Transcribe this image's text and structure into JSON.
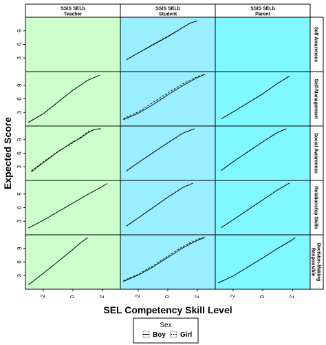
{
  "chart_data": {
    "type": "line",
    "columns": [
      {
        "line1": "SSIS SELb",
        "line2": "Teacher",
        "bg": "#ccffcc"
      },
      {
        "line1": "SSIS SELb",
        "line2": "Student",
        "bg": "#99eeff"
      },
      {
        "line1": "SSIS SELb",
        "line2": "Parent",
        "bg": "#80f8ff"
      }
    ],
    "rows": [
      {
        "label": "Self Awareness",
        "lines": [
          "Self Awareness"
        ]
      },
      {
        "label": "Self-Management",
        "lines": [
          "Self-Management"
        ]
      },
      {
        "label": "Social Awareness",
        "lines": [
          "Social Awareness"
        ]
      },
      {
        "label": "Relationship Skills",
        "lines": [
          "Relationship Skills"
        ]
      },
      {
        "label": "Responsible Decision-Making",
        "lines": [
          "Responsible",
          "Decision-Making"
        ]
      }
    ],
    "xlabel": "SEL Competency Skill Level",
    "ylabel": "Expected Score",
    "xlim": [
      -3.2,
      3.2
    ],
    "ylim": [
      0,
      12
    ],
    "x_ticks": [
      -2,
      0,
      2
    ],
    "y_ticks": [
      3,
      6,
      9
    ],
    "legend": {
      "title": "Sex",
      "placement": "bottom",
      "items": [
        {
          "name": "Boy",
          "style": "solid"
        },
        {
          "name": "Girl",
          "style": "dashed"
        }
      ]
    },
    "series": [
      {
        "row": 0,
        "col": 0,
        "name": "Boy",
        "x": [],
        "y": []
      },
      {
        "row": 0,
        "col": 0,
        "name": "Girl",
        "x": [],
        "y": []
      },
      {
        "row": 0,
        "col": 1,
        "name": "Boy",
        "x": [
          -2.8,
          -2.0,
          -1.0,
          0.0,
          1.0,
          1.5,
          2.0
        ],
        "y": [
          2.6,
          4.1,
          5.9,
          7.7,
          9.7,
          10.7,
          11.2
        ]
      },
      {
        "row": 0,
        "col": 1,
        "name": "Girl",
        "x": [
          -2.8,
          -2.0,
          -1.0,
          0.0,
          1.0,
          1.5,
          2.0
        ],
        "y": [
          2.6,
          4.1,
          6.0,
          7.8,
          9.7,
          10.7,
          11.2
        ]
      },
      {
        "row": 0,
        "col": 2,
        "name": "Boy",
        "x": [],
        "y": []
      },
      {
        "row": 0,
        "col": 2,
        "name": "Girl",
        "x": [],
        "y": []
      },
      {
        "row": 1,
        "col": 0,
        "name": "Boy",
        "x": [
          -3.0,
          -2.0,
          -1.0,
          0.0,
          1.0,
          1.8
        ],
        "y": [
          0.8,
          2.7,
          5.3,
          7.9,
          10.1,
          11.2
        ]
      },
      {
        "row": 1,
        "col": 0,
        "name": "Girl",
        "x": [
          -3.0,
          -2.0,
          -1.0,
          0.0,
          1.0,
          1.8
        ],
        "y": [
          0.8,
          2.7,
          5.3,
          7.9,
          10.1,
          11.2
        ]
      },
      {
        "row": 1,
        "col": 1,
        "name": "Boy",
        "x": [
          -3.0,
          -2.0,
          -1.0,
          0.0,
          1.0,
          2.0,
          2.5
        ],
        "y": [
          1.4,
          2.8,
          4.7,
          6.9,
          8.9,
          10.7,
          11.4
        ]
      },
      {
        "row": 1,
        "col": 1,
        "name": "Girl",
        "x": [
          -3.0,
          -2.0,
          -1.0,
          0.0,
          1.0,
          2.0,
          2.5
        ],
        "y": [
          1.6,
          3.1,
          5.2,
          7.3,
          9.3,
          10.9,
          11.4
        ]
      },
      {
        "row": 1,
        "col": 2,
        "name": "Boy",
        "x": [
          -2.8,
          -2.0,
          -1.0,
          0.0,
          1.0,
          1.8
        ],
        "y": [
          1.6,
          3.1,
          5.1,
          7.1,
          9.4,
          11.0
        ]
      },
      {
        "row": 1,
        "col": 2,
        "name": "Girl",
        "x": [
          -2.8,
          -2.0,
          -1.0,
          0.0,
          1.0,
          1.8
        ],
        "y": [
          1.6,
          3.1,
          5.1,
          7.1,
          9.4,
          11.0
        ]
      },
      {
        "row": 2,
        "col": 0,
        "name": "Boy",
        "x": [
          -2.8,
          -2.0,
          -1.0,
          0.0,
          0.5,
          1.0,
          1.5,
          1.9
        ],
        "y": [
          1.9,
          3.9,
          6.3,
          8.5,
          9.3,
          10.5,
          11.3,
          11.4
        ]
      },
      {
        "row": 2,
        "col": 0,
        "name": "Girl",
        "x": [
          -2.8,
          -2.0,
          -1.0,
          0.0,
          0.5,
          1.0,
          1.5,
          1.9
        ],
        "y": [
          2.1,
          4.1,
          6.4,
          8.3,
          9.5,
          10.7,
          11.3,
          11.4
        ]
      },
      {
        "row": 2,
        "col": 1,
        "name": "Boy",
        "x": [
          -2.8,
          -2.0,
          -1.0,
          0.0,
          1.0,
          1.8
        ],
        "y": [
          2.1,
          3.9,
          6.1,
          8.3,
          10.4,
          11.4
        ]
      },
      {
        "row": 2,
        "col": 1,
        "name": "Girl",
        "x": [
          -2.8,
          -2.0,
          -1.0,
          0.0,
          1.0,
          1.8
        ],
        "y": [
          2.1,
          3.9,
          6.1,
          8.3,
          10.4,
          11.4
        ]
      },
      {
        "row": 2,
        "col": 2,
        "name": "Boy",
        "x": [
          -2.8,
          -2.0,
          -1.0,
          0.0,
          1.0,
          1.6
        ],
        "y": [
          2.2,
          4.1,
          6.3,
          8.5,
          10.6,
          11.4
        ]
      },
      {
        "row": 2,
        "col": 2,
        "name": "Girl",
        "x": [
          -2.8,
          -2.0,
          -1.0,
          0.0,
          1.0,
          1.6
        ],
        "y": [
          2.2,
          4.1,
          6.3,
          8.5,
          10.6,
          11.4
        ]
      },
      {
        "row": 3,
        "col": 0,
        "name": "Boy",
        "x": [
          -3.0,
          -2.0,
          -1.0,
          0.0,
          1.0,
          2.0,
          2.3
        ],
        "y": [
          1.5,
          3.2,
          5.1,
          7.0,
          8.9,
          10.7,
          11.3
        ]
      },
      {
        "row": 3,
        "col": 0,
        "name": "Girl",
        "x": [
          -3.0,
          -2.0,
          -1.0,
          0.0,
          1.0,
          2.0,
          2.3
        ],
        "y": [
          1.5,
          3.2,
          5.1,
          7.0,
          8.9,
          10.7,
          11.3
        ]
      },
      {
        "row": 3,
        "col": 1,
        "name": "Boy",
        "x": [
          -2.8,
          -2.0,
          -1.0,
          0.0,
          1.0,
          1.7
        ],
        "y": [
          1.9,
          3.7,
          6.0,
          8.3,
          10.4,
          11.4
        ]
      },
      {
        "row": 3,
        "col": 1,
        "name": "Girl",
        "x": [
          -2.8,
          -2.0,
          -1.0,
          0.0,
          1.0,
          1.7
        ],
        "y": [
          1.9,
          3.7,
          6.0,
          8.3,
          10.4,
          11.4
        ]
      },
      {
        "row": 3,
        "col": 2,
        "name": "Boy",
        "x": [
          -2.8,
          -2.0,
          -1.0,
          0.0,
          1.0,
          1.8
        ],
        "y": [
          1.6,
          3.3,
          5.5,
          7.7,
          9.9,
          11.4
        ]
      },
      {
        "row": 3,
        "col": 2,
        "name": "Girl",
        "x": [
          -2.8,
          -2.0,
          -1.0,
          0.0,
          1.0,
          1.8
        ],
        "y": [
          1.6,
          3.3,
          5.5,
          7.7,
          9.9,
          11.4
        ]
      },
      {
        "row": 4,
        "col": 0,
        "name": "Boy",
        "x": [
          -3.0,
          -2.0,
          -1.0,
          0.0,
          0.5,
          1.0
        ],
        "y": [
          1.0,
          3.5,
          6.1,
          8.8,
          10.2,
          11.4
        ]
      },
      {
        "row": 4,
        "col": 0,
        "name": "Girl",
        "x": [
          -3.0,
          -2.0,
          -1.0,
          0.0,
          0.5,
          1.0
        ],
        "y": [
          1.0,
          3.5,
          6.1,
          8.8,
          10.2,
          11.4
        ]
      },
      {
        "row": 4,
        "col": 1,
        "name": "Boy",
        "x": [
          -3.0,
          -2.0,
          -1.0,
          0.0,
          1.0,
          2.0,
          2.5
        ],
        "y": [
          1.7,
          3.1,
          4.9,
          7.0,
          9.1,
          10.8,
          11.4
        ]
      },
      {
        "row": 4,
        "col": 1,
        "name": "Girl",
        "x": [
          -3.0,
          -2.0,
          -1.0,
          0.0,
          1.0,
          2.0,
          2.5
        ],
        "y": [
          1.9,
          3.3,
          5.2,
          7.3,
          9.4,
          11.0,
          11.5
        ]
      },
      {
        "row": 4,
        "col": 2,
        "name": "Boy",
        "x": [
          -3.0,
          -2.0,
          -1.0,
          0.0,
          1.0,
          2.0,
          2.2
        ],
        "y": [
          1.4,
          2.9,
          4.9,
          6.9,
          9.0,
          10.9,
          11.4
        ]
      },
      {
        "row": 4,
        "col": 2,
        "name": "Girl",
        "x": [
          -3.0,
          -2.0,
          -1.0,
          0.0,
          1.0,
          2.0,
          2.2
        ],
        "y": [
          1.4,
          2.9,
          4.9,
          6.9,
          9.0,
          10.9,
          11.4
        ]
      }
    ]
  }
}
